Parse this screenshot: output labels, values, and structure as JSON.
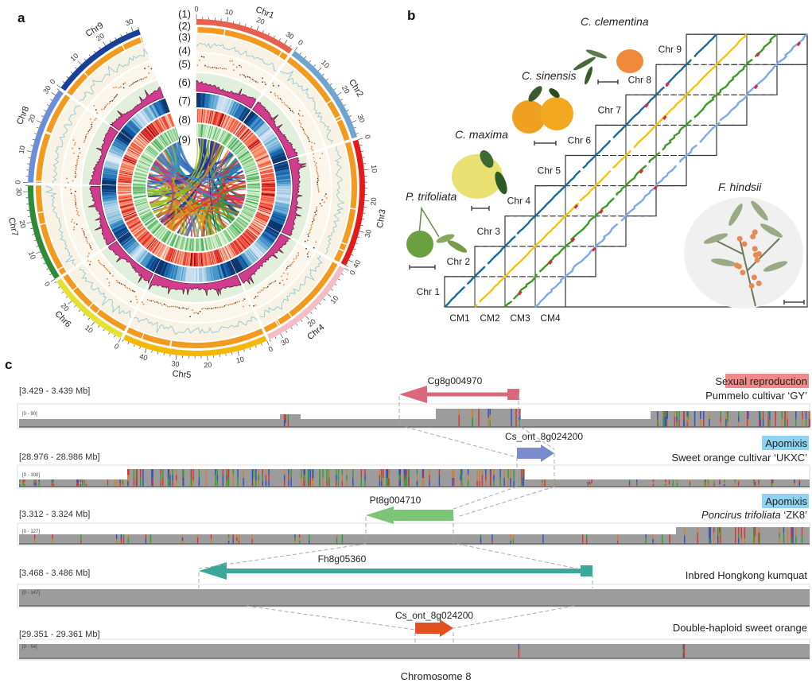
{
  "panel_labels": {
    "a": "a",
    "b": "b",
    "c": "c"
  },
  "circos": {
    "track_labels": [
      "(1)",
      "(2)",
      "(3)",
      "(4)",
      "(5)",
      "(6)",
      "(7)",
      "(8)",
      "(9)"
    ],
    "chromosomes": [
      {
        "name": "Chr1",
        "length": 33,
        "color": "#e8604c"
      },
      {
        "name": "Chr2",
        "length": 35,
        "color": "#6fa3d0"
      },
      {
        "name": "Chr3",
        "length": 42,
        "color": "#e31a1c"
      },
      {
        "name": "Chr4",
        "length": 34,
        "color": "#f4bcc4"
      },
      {
        "name": "Chr5",
        "length": 48,
        "color": "#f5b800"
      },
      {
        "name": "Chr6",
        "length": 28,
        "color": "#e6e030"
      },
      {
        "name": "Chr7",
        "length": 32,
        "color": "#2e8b3a"
      },
      {
        "name": "Chr8",
        "length": 32,
        "color": "#6b8fd6"
      },
      {
        "name": "Chr9",
        "length": 32,
        "color": "#1a3f99"
      }
    ],
    "link_colors": [
      "#1f2f9a",
      "#2a6fb0",
      "#e0302a",
      "#2e9a3a",
      "#d4a020",
      "#e07a1a",
      "#9ac21e",
      "#c83a8a",
      "#3a8ac8"
    ]
  },
  "dotplot": {
    "rows": [
      "Chr 1",
      "Chr 2",
      "Chr 3",
      "Chr 4",
      "Chr 5",
      "Chr 6",
      "Chr 7",
      "Chr 8",
      "Chr 9"
    ],
    "columns": [
      "CM1",
      "CM2",
      "CM3",
      "CM4"
    ],
    "series_colors": [
      "#1a6a9a",
      "#f5c211",
      "#3c9a22",
      "#7fa8f0"
    ],
    "species": {
      "trifoliata": "P. trifoliata",
      "maxima": "C. maxima",
      "sinensis": "C. sinensis",
      "clementina": "C. clementina",
      "hindsii": "F. hindsii"
    }
  },
  "locus": {
    "tracks": [
      {
        "gene": "Cg8g004970",
        "range": "[3.429 - 3.439 Mb]",
        "scale": "[0 - 90]",
        "sample": "Pummelo cultivar ‘GY’",
        "mode": "Sexual reproduction",
        "mode_color": "#f08a8a",
        "gene_color": "#d9687a"
      },
      {
        "gene": "Cs_ont_8g024200",
        "range": "[28.976 - 28.986 Mb]",
        "scale": "[0 - 100]",
        "sample": "Sweet orange cultivar ‘UKXC’",
        "mode": "Apomixis",
        "mode_color": "#8fd3f0",
        "gene_color": "#7b8bcc"
      },
      {
        "gene": "Pt8g004710",
        "range": "[3.312 - 3.324 Mb]",
        "scale": "[0 - 127]",
        "sample_italic": "Poncirus trifoliata",
        "sample": " ‘ZK8’",
        "mode": "Apomixis",
        "mode_color": "#8fd3f0",
        "gene_color": "#7cc576"
      },
      {
        "gene": "Fh8g05360",
        "range": "[3.468 - 3.486 Mb]",
        "scale": "[0 - 147]",
        "sample": "Inbred Hongkong kumquat",
        "gene_color": "#3aa79a"
      },
      {
        "gene": "Cs_ont_8g024200",
        "range": "[29.351 - 29.361 Mb]",
        "scale": "[0 - 54]",
        "sample": "Double-haploid sweet orange",
        "gene_color": "#e05020"
      }
    ],
    "xlabel": "Chromosome 8",
    "variant_colors": [
      "#e03030",
      "#3050c0",
      "#30a030",
      "#d08030"
    ],
    "coverage_color": "#9c9c9c"
  }
}
